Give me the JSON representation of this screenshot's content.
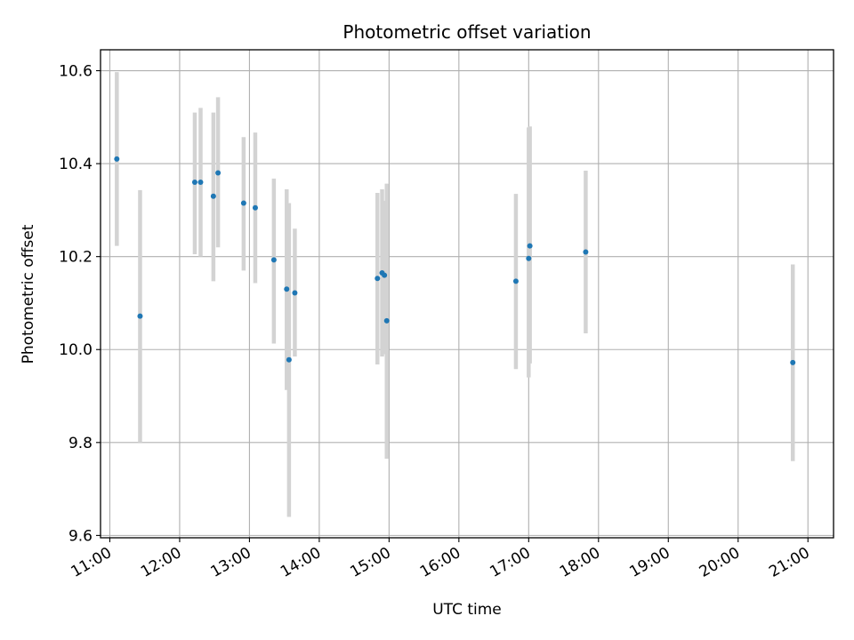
{
  "chart_data": {
    "type": "scatter",
    "title": "Photometric offset variation",
    "xlabel": "UTC time",
    "ylabel": "Photometric offset",
    "x_ticks": [
      "11:00",
      "12:00",
      "13:00",
      "14:00",
      "15:00",
      "16:00",
      "17:00",
      "18:00",
      "19:00",
      "20:00",
      "21:00"
    ],
    "y_ticks": [
      "9.6",
      "9.8",
      "10.0",
      "10.2",
      "10.4",
      "10.6"
    ],
    "xlim": [
      "10:52",
      "21:22"
    ],
    "ylim": [
      9.595,
      10.645
    ],
    "grid": true,
    "series": [
      {
        "marker_color": "#1f77b4",
        "errorbar_color": "#d3d3d3",
        "points": [
          {
            "x": "11:06",
            "y": 10.41,
            "low": 10.223,
            "high": 10.597
          },
          {
            "x": "11:26",
            "y": 10.072,
            "low": 9.8,
            "high": 10.343
          },
          {
            "x": "12:13",
            "y": 10.36,
            "low": 10.205,
            "high": 10.51
          },
          {
            "x": "12:18",
            "y": 10.36,
            "low": 10.2,
            "high": 10.52
          },
          {
            "x": "12:29",
            "y": 10.33,
            "low": 10.147,
            "high": 10.51
          },
          {
            "x": "12:33",
            "y": 10.38,
            "low": 10.22,
            "high": 10.543
          },
          {
            "x": "12:55",
            "y": 10.315,
            "low": 10.17,
            "high": 10.457
          },
          {
            "x": "13:05",
            "y": 10.305,
            "low": 10.143,
            "high": 10.467
          },
          {
            "x": "13:21",
            "y": 10.193,
            "low": 10.013,
            "high": 10.368
          },
          {
            "x": "13:32",
            "y": 10.13,
            "low": 9.913,
            "high": 10.345
          },
          {
            "x": "13:34",
            "y": 9.978,
            "low": 9.64,
            "high": 10.315
          },
          {
            "x": "13:39",
            "y": 10.122,
            "low": 9.985,
            "high": 10.26
          },
          {
            "x": "14:50",
            "y": 10.153,
            "low": 9.968,
            "high": 10.337
          },
          {
            "x": "14:54",
            "y": 10.165,
            "low": 9.985,
            "high": 10.345
          },
          {
            "x": "14:56",
            "y": 10.16,
            "low": 9.99,
            "high": 10.32
          },
          {
            "x": "14:58",
            "y": 10.062,
            "low": 9.765,
            "high": 10.357
          },
          {
            "x": "16:49",
            "y": 10.147,
            "low": 9.958,
            "high": 10.335
          },
          {
            "x": "17:00",
            "y": 10.196,
            "low": 9.94,
            "high": 10.478
          },
          {
            "x": "17:01",
            "y": 10.223,
            "low": 9.97,
            "high": 10.48
          },
          {
            "x": "17:49",
            "y": 10.21,
            "low": 10.035,
            "high": 10.385
          },
          {
            "x": "20:47",
            "y": 9.972,
            "low": 9.76,
            "high": 10.183
          }
        ]
      }
    ]
  }
}
